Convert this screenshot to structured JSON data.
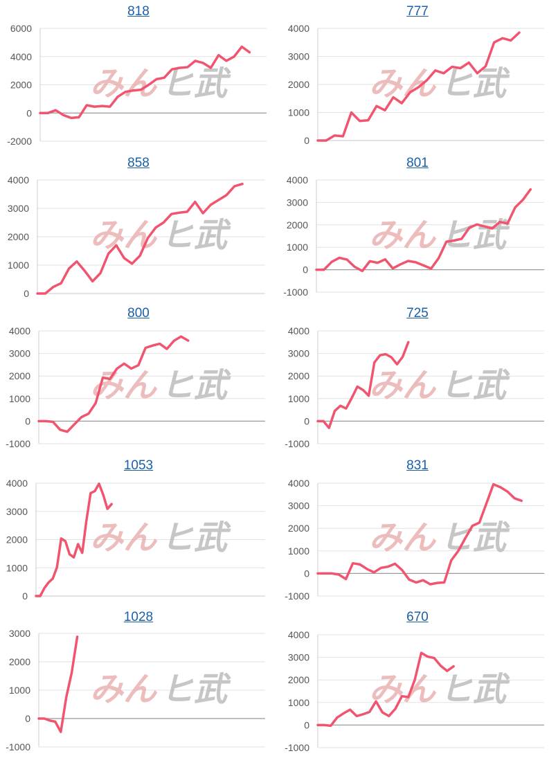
{
  "watermark": {
    "part1": "みん",
    "part2": "ヒ武"
  },
  "colors": {
    "line": "#f0546e",
    "grid": "#e2e2e2",
    "zero_axis": "#999999",
    "title_link": "#1a5fa8"
  },
  "chart_data": [
    {
      "type": "line",
      "title": "818",
      "ylim": [
        -2000,
        6000
      ],
      "yticks": [
        6000,
        4000,
        2000,
        0,
        -2000
      ],
      "values": [
        0,
        0,
        200,
        -150,
        -350,
        -300,
        550,
        450,
        500,
        450,
        1150,
        1500,
        1600,
        1650,
        2000,
        2400,
        2500,
        3100,
        3200,
        3250,
        3700,
        3550,
        3200,
        4100,
        3700,
        4000,
        4700,
        4300
      ]
    },
    {
      "type": "line",
      "title": "777",
      "ylim": [
        0,
        4000
      ],
      "yticks": [
        4000,
        3000,
        2000,
        1000,
        0
      ],
      "values": [
        0,
        0,
        180,
        150,
        1000,
        700,
        720,
        1230,
        1080,
        1540,
        1330,
        1720,
        1900,
        2150,
        2500,
        2400,
        2630,
        2580,
        2780,
        2400,
        2650,
        3500,
        3650,
        3570,
        3850
      ]
    },
    {
      "type": "line",
      "title": "858",
      "ylim": [
        0,
        4000
      ],
      "yticks": [
        4000,
        3000,
        2000,
        1000,
        0
      ],
      "values": [
        0,
        0,
        230,
        360,
        880,
        1130,
        800,
        430,
        720,
        1400,
        1700,
        1250,
        1050,
        1330,
        1950,
        2320,
        2500,
        2800,
        2850,
        2880,
        3230,
        2830,
        3130,
        3300,
        3470,
        3780,
        3860
      ]
    },
    {
      "type": "line",
      "title": "801",
      "ylim": [
        -1000,
        4000
      ],
      "yticks": [
        4000,
        3000,
        2000,
        1000,
        0,
        -1000
      ],
      "values": [
        0,
        0,
        350,
        530,
        450,
        130,
        -60,
        380,
        310,
        460,
        60,
        240,
        390,
        330,
        190,
        50,
        520,
        1250,
        1300,
        1380,
        1870,
        2020,
        1930,
        1840,
        2130,
        2060,
        2780,
        3110,
        3580
      ]
    },
    {
      "type": "line",
      "title": "800",
      "ylim": [
        -1000,
        4000
      ],
      "yticks": [
        4000,
        3000,
        2000,
        1000,
        0,
        -1000
      ],
      "values": [
        0,
        0,
        -30,
        -380,
        -470,
        -140,
        180,
        330,
        800,
        1930,
        1870,
        2330,
        2550,
        2330,
        2480,
        3250,
        3350,
        3430,
        3200,
        3560,
        3750,
        3570
      ]
    },
    {
      "type": "line",
      "title": "725",
      "ylim": [
        -1000,
        4000
      ],
      "yticks": [
        4000,
        3000,
        2000,
        1000,
        0,
        -1000
      ],
      "values": [
        0,
        0,
        -300,
        450,
        680,
        560,
        1030,
        1530,
        1380,
        1130,
        2600,
        2920,
        2970,
        2830,
        2520,
        2850,
        3500
      ]
    },
    {
      "type": "line",
      "title": "1053",
      "ylim": [
        0,
        4000
      ],
      "yticks": [
        4000,
        3000,
        2000,
        1000,
        0
      ],
      "values": [
        0,
        0,
        280,
        480,
        620,
        1020,
        2040,
        1940,
        1480,
        1370,
        1840,
        1530,
        2670,
        3650,
        3720,
        3980,
        3590,
        3090,
        3260
      ]
    },
    {
      "type": "line",
      "title": "831",
      "ylim": [
        -1000,
        4000
      ],
      "yticks": [
        4000,
        3000,
        2000,
        1000,
        0,
        -1000
      ],
      "values": [
        0,
        0,
        0,
        -50,
        -250,
        450,
        400,
        200,
        50,
        250,
        300,
        430,
        150,
        -270,
        -400,
        -300,
        -480,
        -420,
        -400,
        580,
        1000,
        1560,
        2110,
        2250,
        3100,
        3950,
        3820,
        3630,
        3330,
        3220
      ]
    },
    {
      "type": "line",
      "title": "1028",
      "ylim": [
        -1000,
        3000
      ],
      "yticks": [
        3000,
        2000,
        1000,
        0,
        -1000
      ],
      "values": [
        0,
        0,
        -70,
        -110,
        -470,
        750,
        1620,
        2880
      ]
    },
    {
      "type": "line",
      "title": "670",
      "ylim": [
        -1000,
        4000
      ],
      "yticks": [
        4000,
        3000,
        2000,
        1000,
        0,
        -1000
      ],
      "values": [
        0,
        0,
        -30,
        330,
        520,
        680,
        400,
        480,
        580,
        1050,
        560,
        400,
        720,
        1280,
        1240,
        2000,
        3200,
        3030,
        2970,
        2630,
        2400,
        2600
      ]
    }
  ]
}
